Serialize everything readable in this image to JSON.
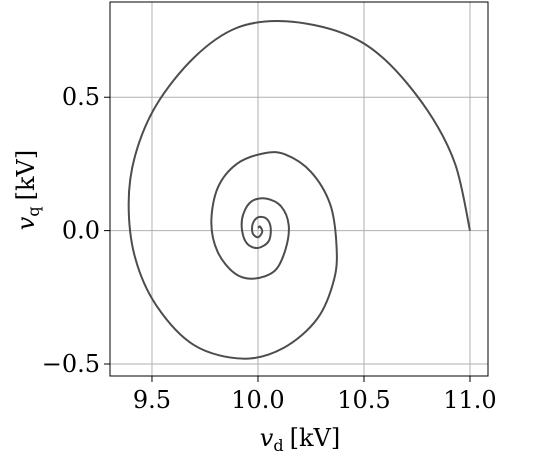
{
  "chart_data": {
    "type": "line",
    "xlabel": {
      "symbol": "v",
      "subscript": "d",
      "unit": "[kV]"
    },
    "ylabel": {
      "symbol": "v",
      "subscript": "q",
      "unit": "[kV]"
    },
    "xlim": [
      9.302,
      11.085
    ],
    "ylim": [
      -0.545,
      0.857
    ],
    "xticks": [
      9.5,
      {
        "value": 10.0,
        "label": "10.0"
      },
      10.5,
      {
        "value": 11.0,
        "label": "11.0"
      }
    ],
    "yticks": [
      {
        "value": -0.5,
        "label": "−0.5"
      },
      {
        "value": 0.0,
        "label": "0.0"
      },
      0.5
    ],
    "grid": true,
    "series": [
      {
        "color": "#4d4d4d",
        "x": [
          11.0,
          10.93,
          10.8,
          10.6,
          10.4,
          10.13,
          9.9,
          9.7,
          9.52,
          9.42,
          9.39,
          9.42,
          9.52,
          9.7,
          9.93,
          10.12,
          10.28,
          10.36,
          10.37,
          10.34,
          10.25,
          10.13,
          10.03,
          9.9,
          9.81,
          9.78,
          9.81,
          9.89,
          9.98,
          10.08,
          10.13,
          10.145,
          10.11,
          10.04,
          9.97,
          9.93,
          9.925,
          9.95,
          10.0,
          10.05,
          10.06,
          10.04,
          10.0,
          9.975,
          9.975,
          10.0,
          10.02,
          10.01,
          10.0
        ],
        "values": [
          0.0,
          0.25,
          0.45,
          0.64,
          0.74,
          0.785,
          0.76,
          0.65,
          0.47,
          0.28,
          0.1,
          -0.1,
          -0.28,
          -0.43,
          -0.48,
          -0.44,
          -0.33,
          -0.18,
          -0.05,
          0.1,
          0.22,
          0.285,
          0.29,
          0.25,
          0.16,
          0.03,
          -0.08,
          -0.16,
          -0.18,
          -0.15,
          -0.07,
          0.02,
          0.09,
          0.12,
          0.11,
          0.06,
          0.0,
          -0.05,
          -0.065,
          -0.04,
          0.01,
          0.045,
          0.05,
          0.025,
          -0.01,
          -0.025,
          -0.005,
          0.015,
          0.01
        ]
      }
    ]
  }
}
